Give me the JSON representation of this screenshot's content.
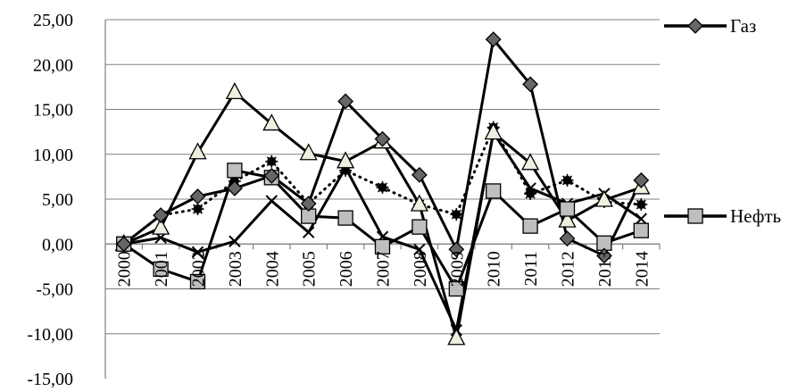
{
  "chart_data": {
    "type": "line",
    "title": "",
    "xlabel": "",
    "ylabel": "",
    "ylim": [
      -15,
      25
    ],
    "ytick_step": 5,
    "ytick_labels": [
      "25,00",
      "20,00",
      "15,00",
      "10,00",
      "5,00",
      "0,00",
      "-5,00",
      "-10,00",
      "-15,00"
    ],
    "categories": [
      "2000",
      "2001",
      "2002",
      "2003",
      "2004",
      "2005",
      "2006",
      "2007",
      "2008",
      "2009",
      "2010",
      "2011",
      "2012",
      "2013",
      "2014"
    ],
    "grid": true,
    "series": [
      {
        "name": "Газ",
        "legend": true,
        "marker": "diamond",
        "marker_fill": "#666666",
        "line_color": "#000000",
        "line_style": "solid",
        "values": [
          0,
          3.2,
          5.3,
          6.2,
          7.6,
          4.5,
          15.9,
          11.7,
          7.7,
          -0.6,
          22.8,
          17.8,
          0.6,
          -1.3,
          7.1
        ]
      },
      {
        "name": "Нефть",
        "legend": true,
        "marker": "square",
        "marker_fill": "#bfbfbf",
        "line_color": "#000000",
        "line_style": "solid",
        "values": [
          0,
          -2.8,
          -4.2,
          8.2,
          7.4,
          3.1,
          2.9,
          -0.3,
          1.9,
          -5.0,
          5.9,
          2.0,
          3.9,
          0.1,
          1.5
        ]
      },
      {
        "name": "",
        "legend": false,
        "marker": "triangle",
        "marker_fill": "#ebf1de",
        "line_color": "#000000",
        "line_style": "solid",
        "values": [
          0,
          1.8,
          10.2,
          16.9,
          13.4,
          10.1,
          9.2,
          11.4,
          4.4,
          -10.5,
          12.4,
          9.0,
          2.6,
          4.9,
          6.3
        ]
      },
      {
        "name": "",
        "legend": false,
        "marker": "x",
        "marker_fill": "none",
        "line_color": "#000000",
        "line_style": "solid",
        "values": [
          0,
          0.7,
          -0.9,
          0.3,
          4.8,
          1.3,
          8.5,
          0.8,
          -0.6,
          -9.6,
          12.4,
          6.2,
          4.5,
          5.6,
          2.8
        ]
      },
      {
        "name": "",
        "legend": false,
        "marker": "circle",
        "marker_fill": "#000000",
        "line_color": "#000000",
        "line_style": "dotted",
        "values": [
          0,
          3.2,
          3.9,
          7.0,
          9.2,
          4.5,
          8.2,
          6.3,
          4.4,
          3.3,
          13.0,
          5.6,
          7.1,
          4.7,
          4.4
        ]
      }
    ],
    "legend_position": "right"
  }
}
